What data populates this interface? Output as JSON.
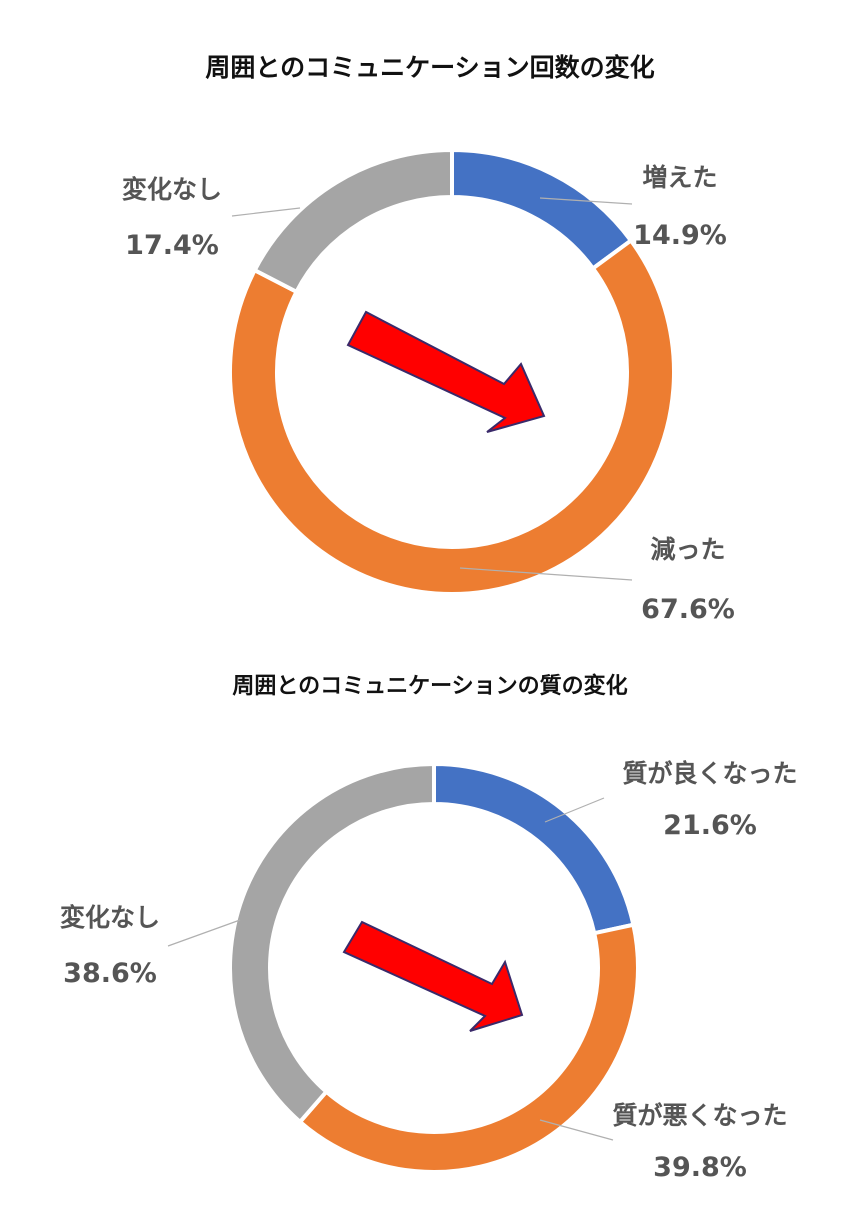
{
  "chart_data": [
    {
      "type": "pie",
      "title": "周囲とのコミュニケーション回数の変化",
      "categories": [
        "増えた",
        "減った",
        "変化なし"
      ],
      "values": [
        14.9,
        67.6,
        17.4
      ],
      "value_labels": [
        "14.9%",
        "67.6%",
        "17.4%"
      ],
      "unit": "%",
      "colors": [
        "#4472C4",
        "#ED7D31",
        "#A5A5A5"
      ],
      "legend": "none"
    },
    {
      "type": "pie",
      "title": "周囲とのコミュニケーションの質の変化",
      "categories": [
        "質が良くなった",
        "質が悪くなった",
        "変化なし"
      ],
      "values": [
        21.6,
        39.8,
        38.6
      ],
      "value_labels": [
        "21.6%",
        "39.8%",
        "38.6%"
      ],
      "unit": "%",
      "colors": [
        "#4472C4",
        "#ED7D31",
        "#A5A5A5"
      ],
      "legend": "none"
    }
  ],
  "arrow_color": "#FF0000"
}
